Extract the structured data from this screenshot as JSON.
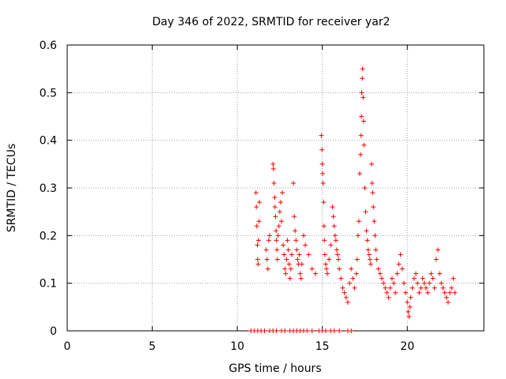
{
  "chart_data": {
    "type": "scatter",
    "title": "Day 346 of 2022, SRMTID for receiver yar2",
    "xlabel": "GPS time / hours",
    "ylabel": "SRMTID / TECUs",
    "xlim": [
      0,
      24.5
    ],
    "ylim": [
      0,
      0.6
    ],
    "xticks": [
      0,
      5,
      10,
      15,
      20
    ],
    "yticks": [
      0,
      0.1,
      0.2,
      0.3,
      0.4,
      0.5,
      0.6
    ],
    "ytick_labels": [
      "0",
      "0.1",
      "0.2",
      "0.3",
      "0.4",
      "0.5",
      "0.6"
    ],
    "grid": true,
    "marker": "+",
    "colors": {
      "series": "#ff0000",
      "grid": "#a0a0a0",
      "axis": "#000000"
    },
    "series": [
      {
        "name": "SRMTID",
        "points": [
          [
            11.1,
            0.29
          ],
          [
            11.12,
            0.26
          ],
          [
            11.15,
            0.22
          ],
          [
            11.18,
            0.18
          ],
          [
            11.2,
            0.15
          ],
          [
            11.23,
            0.14
          ],
          [
            11.25,
            0.19
          ],
          [
            11.28,
            0.23
          ],
          [
            11.3,
            0.27
          ],
          [
            11.7,
            0.17
          ],
          [
            11.75,
            0.15
          ],
          [
            11.8,
            0.13
          ],
          [
            11.85,
            0.19
          ],
          [
            11.9,
            0.2
          ],
          [
            12.1,
            0.35
          ],
          [
            12.13,
            0.34
          ],
          [
            12.16,
            0.31
          ],
          [
            12.2,
            0.28
          ],
          [
            12.22,
            0.26
          ],
          [
            12.25,
            0.24
          ],
          [
            12.28,
            0.21
          ],
          [
            12.3,
            0.19
          ],
          [
            12.33,
            0.17
          ],
          [
            12.36,
            0.15
          ],
          [
            12.4,
            0.2
          ],
          [
            12.45,
            0.22
          ],
          [
            12.5,
            0.25
          ],
          [
            12.55,
            0.27
          ],
          [
            12.6,
            0.23
          ],
          [
            12.65,
            0.29
          ],
          [
            12.7,
            0.18
          ],
          [
            12.75,
            0.16
          ],
          [
            12.8,
            0.13
          ],
          [
            12.85,
            0.12
          ],
          [
            12.9,
            0.15
          ],
          [
            12.95,
            0.19
          ],
          [
            13.0,
            0.17
          ],
          [
            13.05,
            0.14
          ],
          [
            13.1,
            0.11
          ],
          [
            13.15,
            0.13
          ],
          [
            13.2,
            0.16
          ],
          [
            13.3,
            0.31
          ],
          [
            13.35,
            0.24
          ],
          [
            13.4,
            0.21
          ],
          [
            13.45,
            0.19
          ],
          [
            13.5,
            0.17
          ],
          [
            13.55,
            0.15
          ],
          [
            13.6,
            0.14
          ],
          [
            13.65,
            0.16
          ],
          [
            13.7,
            0.12
          ],
          [
            13.75,
            0.11
          ],
          [
            13.8,
            0.14
          ],
          [
            13.9,
            0.2
          ],
          [
            14.0,
            0.18
          ],
          [
            14.2,
            0.16
          ],
          [
            14.4,
            0.13
          ],
          [
            14.6,
            0.12
          ],
          [
            14.95,
            0.41
          ],
          [
            14.98,
            0.38
          ],
          [
            15.0,
            0.35
          ],
          [
            15.02,
            0.33
          ],
          [
            15.05,
            0.31
          ],
          [
            15.08,
            0.27
          ],
          [
            15.1,
            0.22
          ],
          [
            15.12,
            0.19
          ],
          [
            15.15,
            0.16
          ],
          [
            15.2,
            0.14
          ],
          [
            15.25,
            0.13
          ],
          [
            15.3,
            0.12
          ],
          [
            15.4,
            0.15
          ],
          [
            15.5,
            0.18
          ],
          [
            15.6,
            0.26
          ],
          [
            15.65,
            0.24
          ],
          [
            15.7,
            0.22
          ],
          [
            15.75,
            0.2
          ],
          [
            15.8,
            0.19
          ],
          [
            15.85,
            0.17
          ],
          [
            15.9,
            0.16
          ],
          [
            15.95,
            0.15
          ],
          [
            16.0,
            0.13
          ],
          [
            16.1,
            0.11
          ],
          [
            16.2,
            0.09
          ],
          [
            16.3,
            0.08
          ],
          [
            16.4,
            0.07
          ],
          [
            16.5,
            0.06
          ],
          [
            16.6,
            0.1
          ],
          [
            16.7,
            0.13
          ],
          [
            16.8,
            0.11
          ],
          [
            16.9,
            0.09
          ],
          [
            17.0,
            0.12
          ],
          [
            17.05,
            0.15
          ],
          [
            17.1,
            0.2
          ],
          [
            17.15,
            0.23
          ],
          [
            17.2,
            0.33
          ],
          [
            17.25,
            0.37
          ],
          [
            17.28,
            0.41
          ],
          [
            17.3,
            0.45
          ],
          [
            17.32,
            0.5
          ],
          [
            17.35,
            0.53
          ],
          [
            17.37,
            0.55
          ],
          [
            17.4,
            0.49
          ],
          [
            17.43,
            0.44
          ],
          [
            17.45,
            0.39
          ],
          [
            17.5,
            0.3
          ],
          [
            17.55,
            0.25
          ],
          [
            17.6,
            0.21
          ],
          [
            17.65,
            0.19
          ],
          [
            17.7,
            0.17
          ],
          [
            17.75,
            0.16
          ],
          [
            17.8,
            0.15
          ],
          [
            17.85,
            0.14
          ],
          [
            17.9,
            0.35
          ],
          [
            17.93,
            0.31
          ],
          [
            17.96,
            0.29
          ],
          [
            18.0,
            0.26
          ],
          [
            18.05,
            0.23
          ],
          [
            18.1,
            0.2
          ],
          [
            18.15,
            0.17
          ],
          [
            18.2,
            0.15
          ],
          [
            18.3,
            0.13
          ],
          [
            18.4,
            0.12
          ],
          [
            18.5,
            0.11
          ],
          [
            18.6,
            0.1
          ],
          [
            18.7,
            0.09
          ],
          [
            18.8,
            0.08
          ],
          [
            18.9,
            0.07
          ],
          [
            19.0,
            0.09
          ],
          [
            19.1,
            0.11
          ],
          [
            19.2,
            0.1
          ],
          [
            19.3,
            0.08
          ],
          [
            19.4,
            0.12
          ],
          [
            19.5,
            0.14
          ],
          [
            19.6,
            0.16
          ],
          [
            19.7,
            0.13
          ],
          [
            19.8,
            0.1
          ],
          [
            19.9,
            0.08
          ],
          [
            20.0,
            0.06
          ],
          [
            20.05,
            0.04
          ],
          [
            20.1,
            0.03
          ],
          [
            20.15,
            0.05
          ],
          [
            20.2,
            0.07
          ],
          [
            20.3,
            0.09
          ],
          [
            20.4,
            0.11
          ],
          [
            20.5,
            0.12
          ],
          [
            20.6,
            0.1
          ],
          [
            20.7,
            0.08
          ],
          [
            20.8,
            0.09
          ],
          [
            20.9,
            0.11
          ],
          [
            21.0,
            0.1
          ],
          [
            21.1,
            0.09
          ],
          [
            21.2,
            0.08
          ],
          [
            21.3,
            0.1
          ],
          [
            21.4,
            0.12
          ],
          [
            21.5,
            0.11
          ],
          [
            21.6,
            0.09
          ],
          [
            21.7,
            0.15
          ],
          [
            21.8,
            0.17
          ],
          [
            21.9,
            0.12
          ],
          [
            22.0,
            0.1
          ],
          [
            22.1,
            0.09
          ],
          [
            22.2,
            0.08
          ],
          [
            22.3,
            0.07
          ],
          [
            22.4,
            0.06
          ],
          [
            22.5,
            0.08
          ],
          [
            22.6,
            0.09
          ],
          [
            22.7,
            0.11
          ],
          [
            22.8,
            0.08
          ]
        ]
      }
    ],
    "baseline_zero_x": [
      10.8,
      11.0,
      11.2,
      11.4,
      11.6,
      11.9,
      12.1,
      12.3,
      12.6,
      12.8,
      13.1,
      13.3,
      13.5,
      13.7,
      13.9,
      14.1,
      14.4,
      14.8,
      15.0,
      15.2,
      15.5,
      15.7,
      16.0,
      16.5,
      16.7
    ]
  }
}
